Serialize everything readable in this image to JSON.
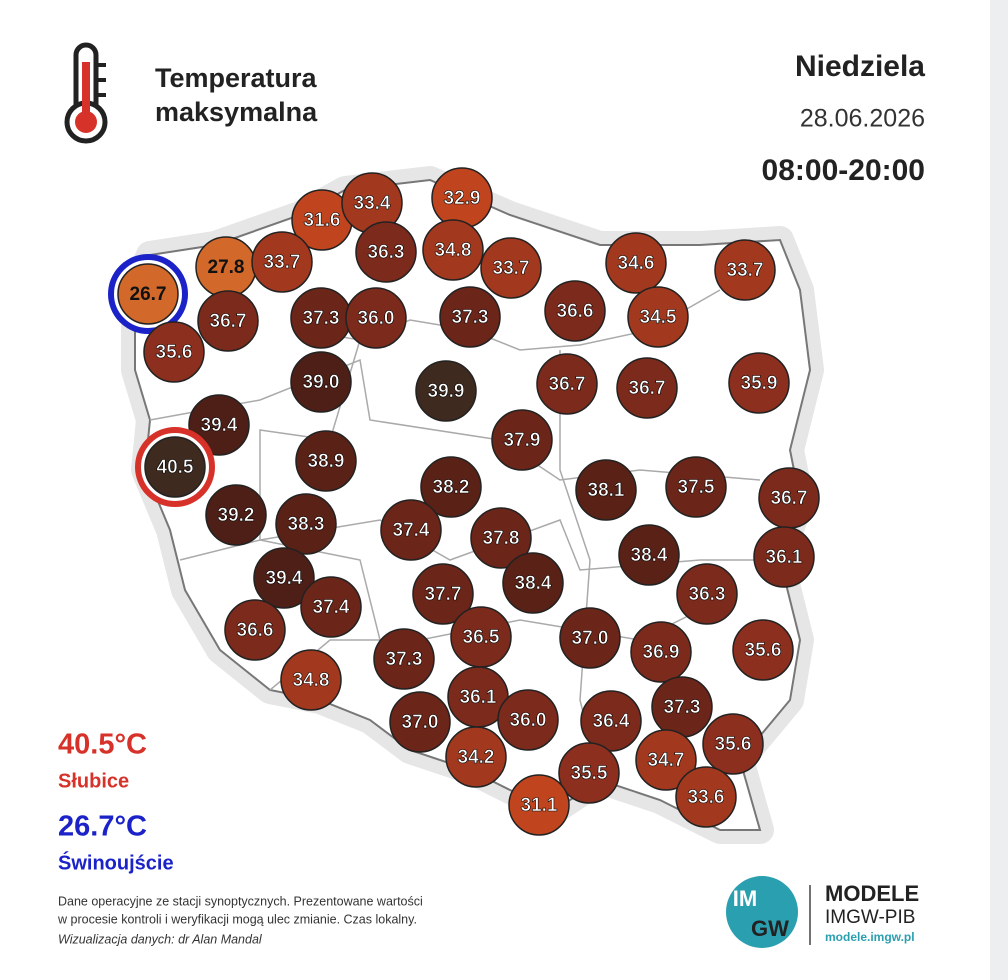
{
  "header": {
    "title_lines": [
      "Temperatura",
      "maksymalna"
    ],
    "day": "Niedziela",
    "date": "28.06.2026",
    "hours": "08:00-20:00"
  },
  "stations": [
    {
      "value": "31.6"
    },
    {
      "value": "33.4"
    },
    {
      "value": "32.9"
    },
    {
      "value": "27.8"
    },
    {
      "value": "33.7"
    },
    {
      "value": "36.3"
    },
    {
      "value": "34.8"
    },
    {
      "value": "33.7"
    },
    {
      "value": "34.6"
    },
    {
      "value": "33.7"
    },
    {
      "value": "26.7",
      "highlight": "min"
    },
    {
      "value": "36.7"
    },
    {
      "value": "37.3"
    },
    {
      "value": "36.0"
    },
    {
      "value": "37.3"
    },
    {
      "value": "36.6"
    },
    {
      "value": "34.5"
    },
    {
      "value": "35.6"
    },
    {
      "value": "39.0"
    },
    {
      "value": "39.9"
    },
    {
      "value": "36.7"
    },
    {
      "value": "36.7"
    },
    {
      "value": "35.9"
    },
    {
      "value": "39.4"
    },
    {
      "value": "37.9"
    },
    {
      "value": "40.5",
      "highlight": "max"
    },
    {
      "value": "38.9"
    },
    {
      "value": "38.2"
    },
    {
      "value": "38.1"
    },
    {
      "value": "37.5"
    },
    {
      "value": "36.7"
    },
    {
      "value": "39.2"
    },
    {
      "value": "38.3"
    },
    {
      "value": "37.4"
    },
    {
      "value": "37.8"
    },
    {
      "value": "38.4"
    },
    {
      "value": "36.1"
    },
    {
      "value": "39.4"
    },
    {
      "value": "38.4"
    },
    {
      "value": "37.7"
    },
    {
      "value": "37.4"
    },
    {
      "value": "36.3"
    },
    {
      "value": "36.6"
    },
    {
      "value": "36.5"
    },
    {
      "value": "37.0"
    },
    {
      "value": "36.9"
    },
    {
      "value": "35.6"
    },
    {
      "value": "37.3"
    },
    {
      "value": "34.8"
    },
    {
      "value": "36.1"
    },
    {
      "value": "37.3"
    },
    {
      "value": "37.0"
    },
    {
      "value": "36.0"
    },
    {
      "value": "36.4"
    },
    {
      "value": "35.6"
    },
    {
      "value": "34.2"
    },
    {
      "value": "35.5"
    },
    {
      "value": "34.7"
    },
    {
      "value": "33.6"
    },
    {
      "value": "31.1"
    }
  ],
  "extremes": {
    "max": {
      "value": "40.5°C",
      "place": "Słubice"
    },
    "min": {
      "value": "26.7°C",
      "place": "Świnoujście"
    }
  },
  "footer": {
    "note_lines": [
      "Dane operacyjne ze stacji synoptycznych. Prezentowane wartości",
      "w procesie kontroli i weryfikacji mogą ulec zmianie. Czas lokalny."
    ],
    "credit": "Wizualizacja danych: dr Alan Mandal"
  },
  "logo": {
    "mark_top": "IM",
    "mark_bottom": "GW",
    "name": "MODELE",
    "org": "IMGW-PIB",
    "url": "modele.imgw.pl"
  }
}
